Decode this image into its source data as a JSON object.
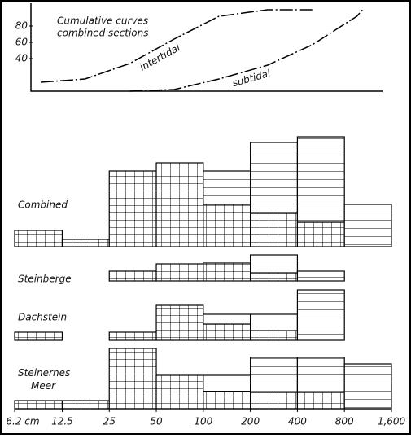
{
  "chart_data": [
    {
      "type": "line",
      "title": "Cumulative curves",
      "subtitle": "combined sections",
      "log_x": true,
      "xlim": [
        6.2,
        1600
      ],
      "ylim": [
        0,
        100
      ],
      "yticks": [
        40,
        60,
        80
      ],
      "series": [
        {
          "name": "intertidal",
          "color": "#000",
          "x": [
            9.1,
            17.5,
            33.8,
            65,
            126,
            258,
            498
          ],
          "values": [
            11,
            15,
            34,
            64,
            92,
            100,
            100
          ]
        },
        {
          "name": "subtidal",
          "color": "#000",
          "x": [
            33.8,
            65,
            126,
            258,
            498,
            961,
            1045
          ],
          "values": [
            0,
            2,
            15,
            32,
            57,
            92,
            100
          ]
        }
      ]
    },
    {
      "type": "histogram",
      "title": "Combined",
      "log_x": true,
      "bins": [
        6.2,
        12.5,
        25,
        50,
        100,
        200,
        400,
        800,
        1600
      ],
      "ylim": [
        0,
        140
      ],
      "series": [
        {
          "pattern": "grid",
          "color": "#000",
          "values": [
            20,
            9,
            93,
            103,
            52,
            41,
            30,
            0
          ]
        },
        {
          "pattern": "horizontal",
          "color": "#000",
          "values": [
            0,
            0,
            0,
            0,
            41,
            87,
            105,
            52
          ]
        }
      ]
    },
    {
      "type": "histogram",
      "title": "Steinberge",
      "log_x": true,
      "bins": [
        6.2,
        12.5,
        25,
        50,
        100,
        200,
        400,
        800,
        1600
      ],
      "ylim": [
        0,
        40
      ],
      "series": [
        {
          "pattern": "grid",
          "color": "#000",
          "values": [
            0,
            0,
            12,
            21,
            22,
            10,
            0,
            0
          ]
        },
        {
          "pattern": "horizontal",
          "color": "#000",
          "values": [
            0,
            0,
            0,
            0,
            0,
            22,
            12,
            0
          ]
        }
      ]
    },
    {
      "type": "histogram",
      "title": "Dachstein",
      "log_x": true,
      "bins": [
        6.2,
        12.5,
        25,
        50,
        100,
        200,
        400,
        800,
        1600
      ],
      "ylim": [
        0,
        70
      ],
      "series": [
        {
          "pattern": "grid",
          "color": "#000",
          "values": [
            10,
            0,
            10,
            43,
            20,
            12,
            0,
            0
          ]
        },
        {
          "pattern": "horizontal",
          "color": "#000",
          "values": [
            0,
            0,
            0,
            0,
            12,
            20,
            62,
            0
          ]
        }
      ]
    },
    {
      "type": "histogram",
      "title": "Steinernes Meer",
      "log_x": true,
      "bins": [
        6.2,
        12.5,
        25,
        50,
        100,
        200,
        400,
        800,
        1600
      ],
      "ylim": [
        0,
        80
      ],
      "xticks": [
        {
          "value": 6.2,
          "label": "6.2 cm"
        },
        12.5,
        25,
        50,
        100,
        200,
        400,
        800,
        {
          "value": 1600,
          "label": "1,600"
        }
      ],
      "series": [
        {
          "pattern": "grid",
          "color": "#000",
          "values": [
            10,
            10,
            74,
            41,
            21,
            20,
            20,
            0
          ]
        },
        {
          "pattern": "horizontal",
          "color": "#000",
          "values": [
            0,
            0,
            0,
            0,
            20,
            43,
            43,
            55
          ]
        }
      ]
    }
  ]
}
